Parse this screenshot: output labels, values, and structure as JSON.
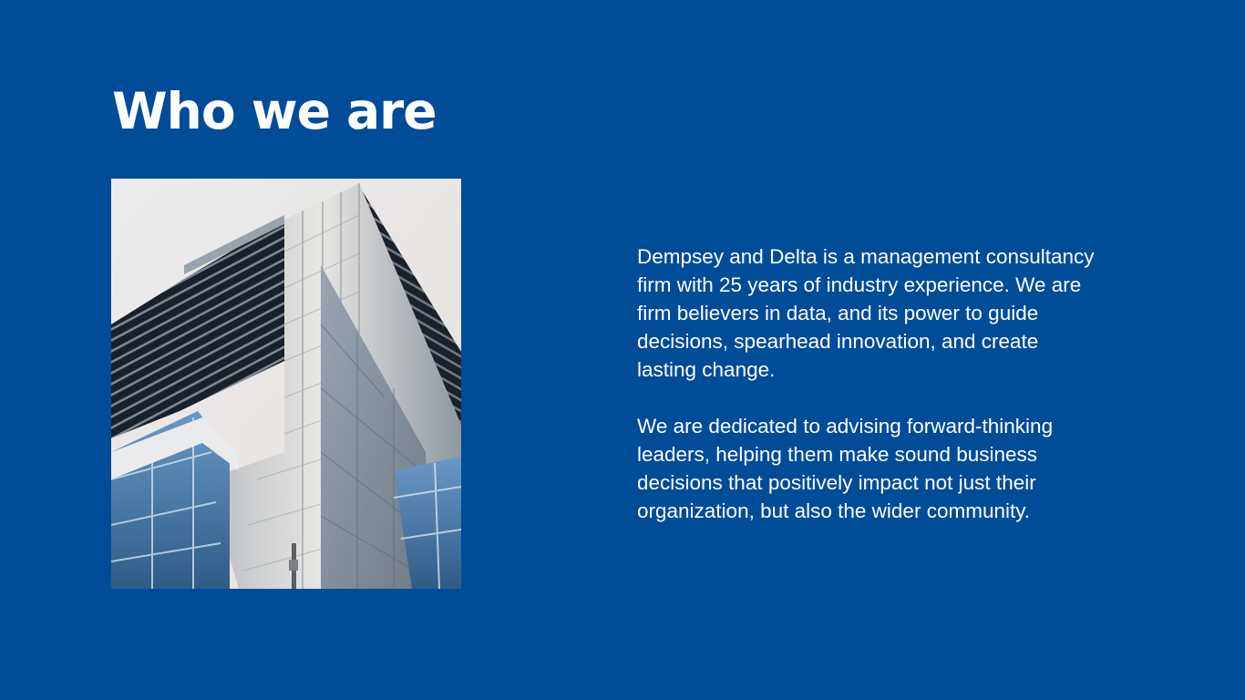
{
  "slide": {
    "title": "Who we are",
    "paragraphs": [
      "Dempsey and Delta is a management consultancy\nfirm with 25 years of industry experience. We are\nfirm believers in data, and its power to guide\ndecisions, spearhead innovation, and create\nlasting change.",
      "We are dedicated to advising forward-thinking\nleaders, helping them make sound business\ndecisions that positively impact not just their\norganization, but also the wider community."
    ]
  },
  "colors": {
    "background": "#004c99",
    "text": "#ffffff",
    "sky": "#e9e5e3",
    "tower_glass": "#1f2731",
    "tower_panel": "#c9ccd0",
    "blue_glass": "#4f7fae"
  },
  "image": {
    "subject": "building-tower-photo"
  }
}
